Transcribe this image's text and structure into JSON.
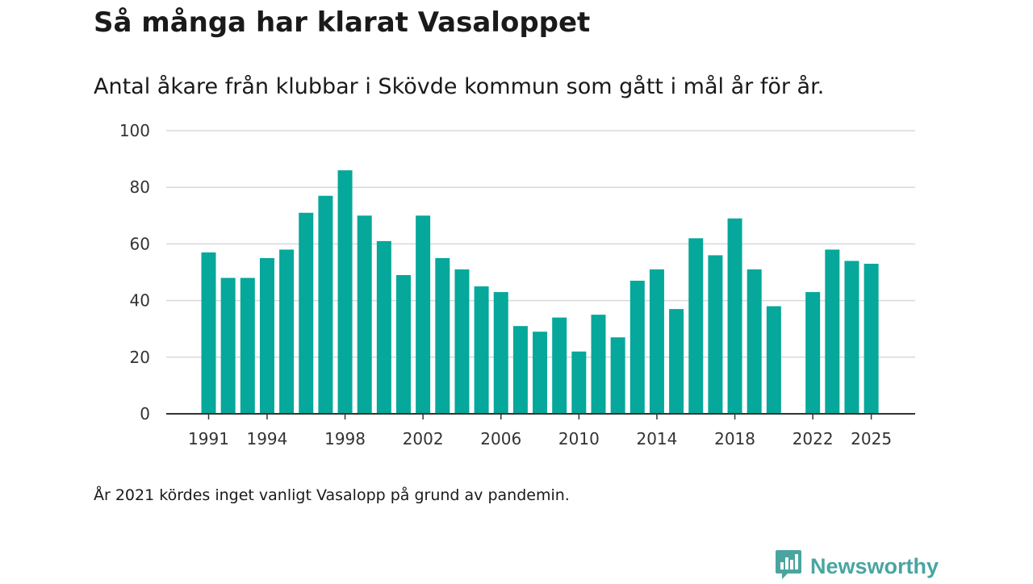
{
  "header": {
    "title": "Så många har klarat Vasaloppet",
    "subtitle": "Antal åkare från klubbar i Skövde kommun som gått i mål år för år."
  },
  "footer": {
    "note": "År 2021 kördes inget vanligt Vasalopp på grund av pandemin.",
    "brand": "Newsworthy"
  },
  "colors": {
    "bar": "#05a89a",
    "grid": "#d9d9d9",
    "axis": "#333333",
    "brand": "#4aa5a0"
  },
  "icons": {
    "brand_logo": "bar-chart-speech-bubble-icon"
  },
  "chart_data": {
    "type": "bar",
    "title": "Så många har klarat Vasaloppet",
    "subtitle": "Antal åkare från klubbar i Skövde kommun som gått i mål år för år.",
    "xlabel": "",
    "ylabel": "",
    "ylim": [
      0,
      100
    ],
    "yticks": [
      0,
      20,
      40,
      60,
      80,
      100
    ],
    "xticks": [
      1991,
      1994,
      1998,
      2002,
      2006,
      2010,
      2014,
      2018,
      2022,
      2025
    ],
    "grid": true,
    "categories": [
      1991,
      1992,
      1993,
      1994,
      1995,
      1996,
      1997,
      1998,
      1999,
      2000,
      2001,
      2002,
      2003,
      2004,
      2005,
      2006,
      2007,
      2008,
      2009,
      2010,
      2011,
      2012,
      2013,
      2014,
      2015,
      2016,
      2017,
      2018,
      2019,
      2020,
      2021,
      2022,
      2023,
      2024,
      2025
    ],
    "values": [
      57,
      48,
      48,
      55,
      58,
      71,
      77,
      86,
      70,
      61,
      49,
      70,
      55,
      51,
      45,
      43,
      31,
      29,
      34,
      22,
      35,
      27,
      47,
      51,
      37,
      62,
      56,
      69,
      51,
      38,
      null,
      43,
      58,
      54,
      53
    ]
  }
}
